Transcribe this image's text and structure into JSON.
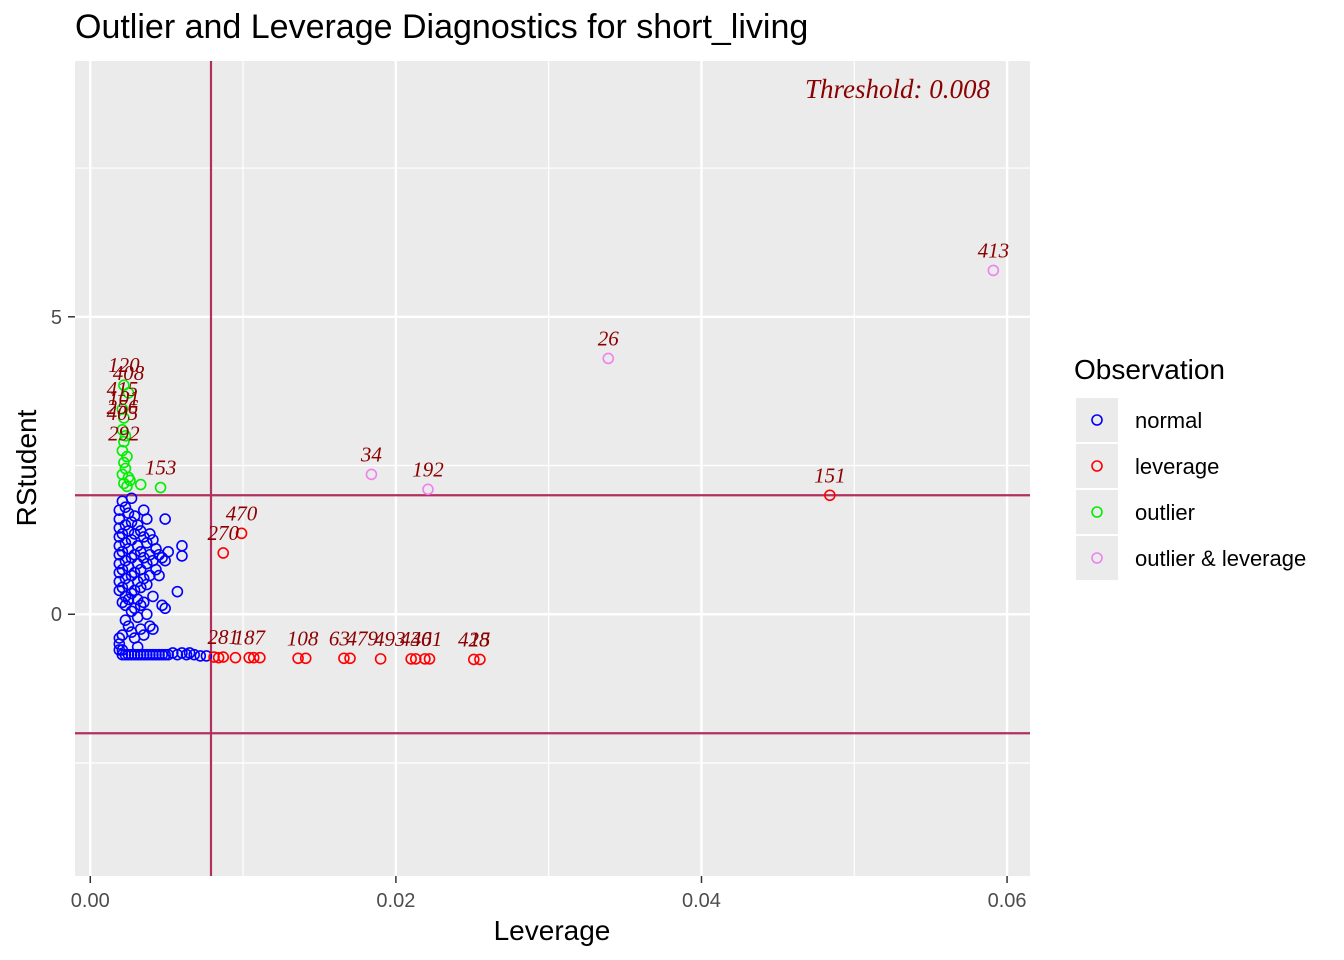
{
  "chart_data": {
    "type": "scatter",
    "title": "Outlier and Leverage Diagnostics for short_living",
    "xlabel": "Leverage",
    "ylabel": "RStudent",
    "xlim": [
      -0.001,
      0.0615
    ],
    "ylim": [
      -4.4,
      9.3
    ],
    "x_ticks": [
      {
        "value": 0.0,
        "label": "0.00"
      },
      {
        "value": 0.02,
        "label": "0.02"
      },
      {
        "value": 0.04,
        "label": "0.04"
      },
      {
        "value": 0.06,
        "label": "0.06"
      }
    ],
    "y_ticks": [
      {
        "value": 0,
        "label": "0"
      },
      {
        "value": 5,
        "label": "5"
      }
    ],
    "grid": true,
    "background": "#ebebeb",
    "threshold_lines": {
      "leverage": 0.0079,
      "rstudent_upper": 2,
      "rstudent_lower": -2,
      "color": "#b03060"
    },
    "annotation": "Threshold: 0.008",
    "legend": {
      "title": "Observation",
      "position": "right",
      "entries": [
        {
          "label": "normal",
          "color": "#0000ff"
        },
        {
          "label": "leverage",
          "color": "#ff0000"
        },
        {
          "label": "outlier",
          "color": "#00ee00"
        },
        {
          "label": "outlier & leverage",
          "color": "#ee82ee"
        }
      ]
    },
    "series": [
      {
        "name": "normal",
        "color": "#0000ff",
        "points": [
          [
            0.0019,
            1.75
          ],
          [
            0.0019,
            1.6
          ],
          [
            0.0019,
            1.45
          ],
          [
            0.0019,
            1.3
          ],
          [
            0.0019,
            1.15
          ],
          [
            0.0019,
            1.0
          ],
          [
            0.0019,
            0.85
          ],
          [
            0.0019,
            0.7
          ],
          [
            0.0019,
            0.55
          ],
          [
            0.0019,
            0.4
          ],
          [
            0.0019,
            -0.4
          ],
          [
            0.0019,
            -0.5
          ],
          [
            0.0019,
            -0.6
          ],
          [
            0.0021,
            1.9
          ],
          [
            0.0021,
            1.35
          ],
          [
            0.0021,
            1.05
          ],
          [
            0.0021,
            0.75
          ],
          [
            0.0021,
            0.45
          ],
          [
            0.0021,
            0.2
          ],
          [
            0.0021,
            -0.35
          ],
          [
            0.0021,
            -0.6
          ],
          [
            0.0021,
            -0.68
          ],
          [
            0.0023,
            1.8
          ],
          [
            0.0023,
            1.5
          ],
          [
            0.0023,
            1.2
          ],
          [
            0.0023,
            0.9
          ],
          [
            0.0023,
            0.6
          ],
          [
            0.0023,
            0.3
          ],
          [
            0.0023,
            0.15
          ],
          [
            0.0023,
            -0.1
          ],
          [
            0.0023,
            -0.68
          ],
          [
            0.0025,
            1.7
          ],
          [
            0.0025,
            1.4
          ],
          [
            0.0025,
            1.1
          ],
          [
            0.0025,
            0.8
          ],
          [
            0.0025,
            0.5
          ],
          [
            0.0025,
            0.25
          ],
          [
            0.0025,
            -0.2
          ],
          [
            0.0025,
            -0.68
          ],
          [
            0.0027,
            1.95
          ],
          [
            0.0027,
            1.55
          ],
          [
            0.0027,
            1.25
          ],
          [
            0.0027,
            0.95
          ],
          [
            0.0027,
            0.65
          ],
          [
            0.0027,
            0.35
          ],
          [
            0.0027,
            0.05
          ],
          [
            0.0027,
            -0.3
          ],
          [
            0.0027,
            -0.68
          ],
          [
            0.0029,
            1.65
          ],
          [
            0.0029,
            1.35
          ],
          [
            0.0029,
            1.0
          ],
          [
            0.0029,
            0.7
          ],
          [
            0.0029,
            0.4
          ],
          [
            0.0029,
            0.1
          ],
          [
            0.0029,
            -0.4
          ],
          [
            0.0029,
            -0.68
          ],
          [
            0.0031,
            1.5
          ],
          [
            0.0031,
            1.15
          ],
          [
            0.0031,
            0.85
          ],
          [
            0.0031,
            0.55
          ],
          [
            0.0031,
            0.25
          ],
          [
            0.0031,
            -0.05
          ],
          [
            0.0031,
            -0.55
          ],
          [
            0.0031,
            -0.68
          ],
          [
            0.0033,
            1.4
          ],
          [
            0.0033,
            1.05
          ],
          [
            0.0033,
            0.75
          ],
          [
            0.0033,
            0.45
          ],
          [
            0.0033,
            0.15
          ],
          [
            0.0033,
            -0.25
          ],
          [
            0.0033,
            -0.68
          ],
          [
            0.0035,
            1.75
          ],
          [
            0.0035,
            1.3
          ],
          [
            0.0035,
            0.95
          ],
          [
            0.0035,
            0.6
          ],
          [
            0.0035,
            0.2
          ],
          [
            0.0035,
            -0.35
          ],
          [
            0.0035,
            -0.68
          ],
          [
            0.0037,
            1.6
          ],
          [
            0.0037,
            1.2
          ],
          [
            0.0037,
            0.85
          ],
          [
            0.0037,
            0.5
          ],
          [
            0.0037,
            0.0
          ],
          [
            0.0037,
            -0.68
          ],
          [
            0.0039,
            1.35
          ],
          [
            0.0039,
            1.0
          ],
          [
            0.0039,
            0.65
          ],
          [
            0.0039,
            -0.2
          ],
          [
            0.0039,
            -0.68
          ],
          [
            0.0041,
            1.25
          ],
          [
            0.0041,
            0.9
          ],
          [
            0.0041,
            0.3
          ],
          [
            0.0041,
            -0.25
          ],
          [
            0.0041,
            -0.68
          ],
          [
            0.0043,
            1.1
          ],
          [
            0.0043,
            0.75
          ],
          [
            0.0043,
            -0.68
          ],
          [
            0.0045,
            1.0
          ],
          [
            0.0045,
            0.65
          ],
          [
            0.0045,
            -0.68
          ],
          [
            0.0047,
            0.95
          ],
          [
            0.0047,
            0.15
          ],
          [
            0.0047,
            -0.68
          ],
          [
            0.0049,
            1.6
          ],
          [
            0.0049,
            0.9
          ],
          [
            0.0049,
            0.1
          ],
          [
            0.0049,
            -0.68
          ],
          [
            0.0051,
            1.05
          ],
          [
            0.0051,
            -0.68
          ],
          [
            0.0054,
            -0.65
          ],
          [
            0.0057,
            0.38
          ],
          [
            0.0057,
            -0.68
          ],
          [
            0.006,
            1.15
          ],
          [
            0.006,
            0.98
          ],
          [
            0.006,
            -0.65
          ],
          [
            0.0063,
            -0.68
          ],
          [
            0.0065,
            -0.65
          ],
          [
            0.0068,
            -0.68
          ],
          [
            0.0072,
            -0.7
          ],
          [
            0.0076,
            -0.7
          ]
        ]
      },
      {
        "name": "leverage",
        "color": "#ff0000",
        "points": [
          [
            0.0081,
            -0.72
          ],
          [
            0.0084,
            -0.73
          ],
          [
            0.0087,
            -0.72
          ],
          [
            0.0095,
            -0.73
          ],
          [
            0.0104,
            -0.73
          ],
          [
            0.0107,
            -0.73
          ],
          [
            0.0111,
            -0.73
          ],
          [
            0.0136,
            -0.74
          ],
          [
            0.0141,
            -0.74
          ],
          [
            0.0166,
            -0.74
          ],
          [
            0.017,
            -0.74
          ],
          [
            0.019,
            -0.75
          ],
          [
            0.021,
            -0.75
          ],
          [
            0.0213,
            -0.75
          ],
          [
            0.0219,
            -0.75
          ],
          [
            0.0222,
            -0.75
          ],
          [
            0.0251,
            -0.76
          ],
          [
            0.0255,
            -0.76
          ],
          [
            0.0087,
            1.03
          ],
          [
            0.0099,
            1.36
          ],
          [
            0.0484,
            2.0
          ]
        ],
        "labels": [
          {
            "x": 0.0087,
            "y": 1.03,
            "text": "270"
          },
          {
            "x": 0.0099,
            "y": 1.36,
            "text": "470"
          },
          {
            "x": 0.0484,
            "y": 2.0,
            "text": "151"
          },
          {
            "x": 0.0087,
            "y": -0.72,
            "text": "281"
          },
          {
            "x": 0.0104,
            "y": -0.73,
            "text": "187"
          },
          {
            "x": 0.0139,
            "y": -0.74,
            "text": "108"
          },
          {
            "x": 0.0163,
            "y": -0.74,
            "text": "63"
          },
          {
            "x": 0.0178,
            "y": -0.74,
            "text": "479"
          },
          {
            "x": 0.0196,
            "y": -0.75,
            "text": "493"
          },
          {
            "x": 0.0213,
            "y": -0.75,
            "text": "430"
          },
          {
            "x": 0.022,
            "y": -0.75,
            "text": "461"
          },
          {
            "x": 0.0251,
            "y": -0.76,
            "text": "428"
          },
          {
            "x": 0.0255,
            "y": -0.76,
            "text": "15"
          }
        ]
      },
      {
        "name": "outlier",
        "color": "#00ee00",
        "points": [
          [
            0.0022,
            3.85
          ],
          [
            0.0025,
            3.72
          ],
          [
            0.0021,
            3.45
          ],
          [
            0.0022,
            3.3
          ],
          [
            0.0021,
            3.1
          ],
          [
            0.0023,
            3.0
          ],
          [
            0.0022,
            2.9
          ],
          [
            0.0021,
            2.75
          ],
          [
            0.0024,
            2.65
          ],
          [
            0.0022,
            2.55
          ],
          [
            0.0023,
            2.45
          ],
          [
            0.0021,
            2.35
          ],
          [
            0.0025,
            2.3
          ],
          [
            0.0022,
            2.2
          ],
          [
            0.0024,
            2.15
          ],
          [
            0.0026,
            2.25
          ],
          [
            0.0033,
            2.18
          ],
          [
            0.0046,
            2.13
          ]
        ],
        "labels": [
          {
            "x": 0.0022,
            "y": 3.85,
            "text": "120"
          },
          {
            "x": 0.0025,
            "y": 3.72,
            "text": "408"
          },
          {
            "x": 0.0021,
            "y": 3.45,
            "text": "415"
          },
          {
            "x": 0.0022,
            "y": 3.3,
            "text": "101"
          },
          {
            "x": 0.0021,
            "y": 3.15,
            "text": "256"
          },
          {
            "x": 0.0021,
            "y": 3.05,
            "text": "405"
          },
          {
            "x": 0.0022,
            "y": 2.7,
            "text": "292"
          },
          {
            "x": 0.0046,
            "y": 2.13,
            "text": "153"
          }
        ]
      },
      {
        "name": "outlier & leverage",
        "color": "#ee82ee",
        "points": [
          [
            0.0184,
            2.35
          ],
          [
            0.0221,
            2.1
          ],
          [
            0.0339,
            4.3
          ],
          [
            0.0591,
            5.78
          ]
        ],
        "labels": [
          {
            "x": 0.0184,
            "y": 2.35,
            "text": "34"
          },
          {
            "x": 0.0221,
            "y": 2.1,
            "text": "192"
          },
          {
            "x": 0.0339,
            "y": 4.3,
            "text": "26"
          },
          {
            "x": 0.0591,
            "y": 5.78,
            "text": "413"
          }
        ]
      }
    ]
  }
}
